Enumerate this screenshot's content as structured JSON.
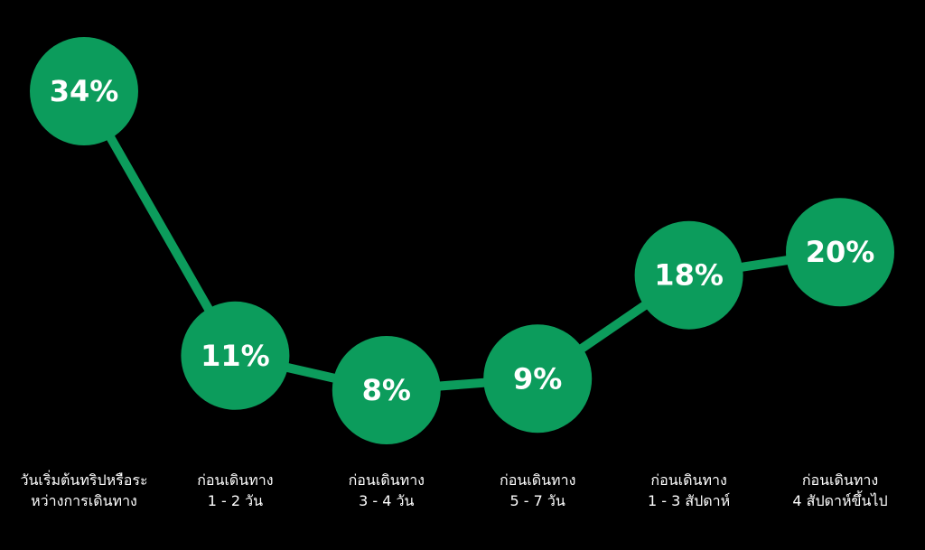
{
  "chart_data": {
    "type": "line",
    "categories": [
      "วันเริ่มต้นทริปหรือระ\nหว่างการเดินทาง",
      "ก่อนเดินทาง\n1 - 2 วัน",
      "ก่อนเดินทาง\n3 - 4 วัน",
      "ก่อนเดินทาง\n5 - 7 วัน",
      "ก่อนเดินทาง\n1 - 3 สัปดาห์",
      "ก่อนเดินทาง\n4 สัปดาห์ขึ้นไป"
    ],
    "values": [
      34,
      11,
      8,
      9,
      18,
      20
    ],
    "value_labels": [
      "34%",
      "11%",
      "8%",
      "9%",
      "18%",
      "20%"
    ],
    "color": "#0c9c5c"
  }
}
